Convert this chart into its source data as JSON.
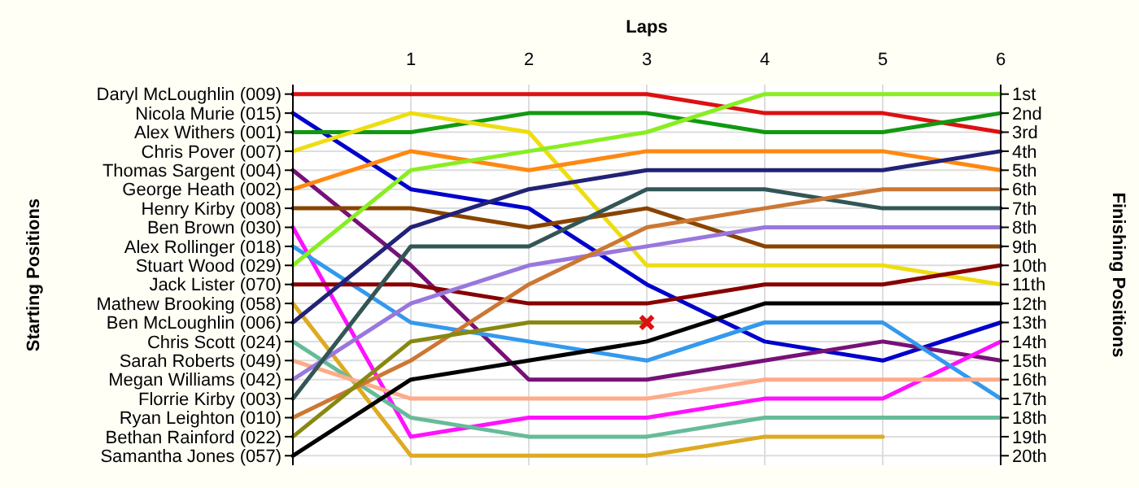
{
  "chart_data": {
    "type": "line",
    "xlabel": "Laps",
    "y2label": "Finishing Positions",
    "xlim": [
      0,
      6
    ],
    "xticks": [
      1,
      2,
      3,
      4,
      5,
      6
    ],
    "y2lim": [
      20.5,
      0.5
    ],
    "y2ticks": [
      {
        "value": 1,
        "label": "1st"
      },
      {
        "value": 2,
        "label": "2nd"
      },
      {
        "value": 3,
        "label": "3rd"
      },
      {
        "value": 4,
        "label": "4th"
      },
      {
        "value": 5,
        "label": "5th"
      },
      {
        "value": 6,
        "label": "6th"
      },
      {
        "value": 7,
        "label": "7th"
      },
      {
        "value": 8,
        "label": "8th"
      },
      {
        "value": 9,
        "label": "9th"
      },
      {
        "value": 10,
        "label": "10th"
      },
      {
        "value": 11,
        "label": "11th"
      },
      {
        "value": 12,
        "label": "12th"
      },
      {
        "value": 13,
        "label": "13th"
      },
      {
        "value": 14,
        "label": "14th"
      },
      {
        "value": 15,
        "label": "15th"
      },
      {
        "value": 16,
        "label": "16th"
      },
      {
        "value": 17,
        "label": "17th"
      },
      {
        "value": 18,
        "label": "18th"
      },
      {
        "value": 19,
        "label": "19th"
      },
      {
        "value": 20,
        "label": "20th"
      }
    ],
    "annotations": [
      "Starting Positions",
      "Daryl McLoughlin (009)",
      "Nicola Murie (015)",
      "Alex Withers (001)",
      "Chris Pover (007)",
      "Thomas Sargent (004)",
      "George Heath (002)",
      "Henry Kirby (008)",
      "Ben Brown (030)",
      "Alex Rollinger (018)",
      "Stuart Wood (029)",
      "Jack Lister (070)",
      "Mathew Brooking (058)",
      "Ben McLoughlin (006)",
      "Chris Scott (024)",
      "Sarah Roberts (049)",
      "Megan Williams (042)",
      "Florrie Kirby (003)",
      "Ryan Leighton (010)",
      "Bethan Rainford (022)",
      "Samantha Jones (057)"
    ],
    "grid": true,
    "line_style": "solid",
    "x": [
      0,
      1,
      2,
      3,
      4,
      5,
      6
    ],
    "series": [
      {
        "axis": "y2",
        "color": "#dd1111",
        "values": [
          1,
          1,
          1,
          1,
          2,
          2,
          3
        ]
      },
      {
        "axis": "y2",
        "color": "#0000cc",
        "values": [
          2,
          6,
          7,
          11,
          14,
          15,
          13
        ]
      },
      {
        "axis": "y2",
        "color": "#119911",
        "values": [
          3,
          3,
          2,
          2,
          3,
          3,
          2
        ]
      },
      {
        "axis": "y2",
        "color": "#eedd11",
        "values": [
          4,
          2,
          3,
          10,
          10,
          10,
          11
        ]
      },
      {
        "axis": "y2",
        "color": "#771177",
        "values": [
          5,
          10,
          16,
          16,
          15,
          14,
          15
        ]
      },
      {
        "axis": "y2",
        "color": "#ff8811",
        "values": [
          6,
          4,
          5,
          4,
          4,
          4,
          5
        ]
      },
      {
        "axis": "y2",
        "color": "#884400",
        "values": [
          7,
          7,
          8,
          7,
          9,
          9,
          9
        ]
      },
      {
        "axis": "y2",
        "color": "#ff11ff",
        "values": [
          8,
          19,
          18,
          18,
          17,
          17,
          14
        ]
      },
      {
        "axis": "y2",
        "color": "#3399ee",
        "values": [
          9,
          13,
          14,
          15,
          13,
          13,
          17
        ]
      },
      {
        "axis": "y2",
        "color": "#88ee22",
        "values": [
          10,
          5,
          4,
          3,
          1,
          1,
          1
        ]
      },
      {
        "axis": "y2",
        "color": "#880000",
        "values": [
          11,
          11,
          12,
          12,
          11,
          11,
          10
        ]
      },
      {
        "axis": "y2",
        "color": "#ddaa22",
        "values": [
          12,
          20,
          20,
          20,
          19,
          19,
          null
        ]
      },
      {
        "axis": "y2",
        "color": "#222277",
        "values": [
          13,
          8,
          6,
          5,
          5,
          5,
          4
        ]
      },
      {
        "axis": "y2",
        "color": "#66bb99",
        "values": [
          14,
          18,
          19,
          19,
          18,
          18,
          18
        ]
      },
      {
        "axis": "y2",
        "color": "#ffaa88",
        "values": [
          15,
          17,
          17,
          17,
          16,
          16,
          16
        ]
      },
      {
        "axis": "y2",
        "color": "#9977dd",
        "values": [
          16,
          12,
          10,
          9,
          8,
          8,
          8
        ]
      },
      {
        "axis": "y2",
        "color": "#335555",
        "values": [
          17,
          9,
          9,
          6,
          6,
          7,
          7
        ]
      },
      {
        "axis": "y2",
        "color": "#cc7733",
        "values": [
          18,
          15,
          11,
          8,
          7,
          6,
          6
        ]
      },
      {
        "axis": "y2",
        "color": "#888811",
        "values": [
          19,
          14,
          13,
          13,
          null,
          null,
          null
        ]
      },
      {
        "axis": "y2",
        "color": "#000000",
        "values": [
          20,
          16,
          15,
          14,
          12,
          12,
          12
        ]
      },
      {
        "axis": "y2",
        "type": "scatter",
        "marker": "cross",
        "color": "#dd1111",
        "x": [
          3
        ],
        "values": [
          13
        ]
      }
    ]
  }
}
